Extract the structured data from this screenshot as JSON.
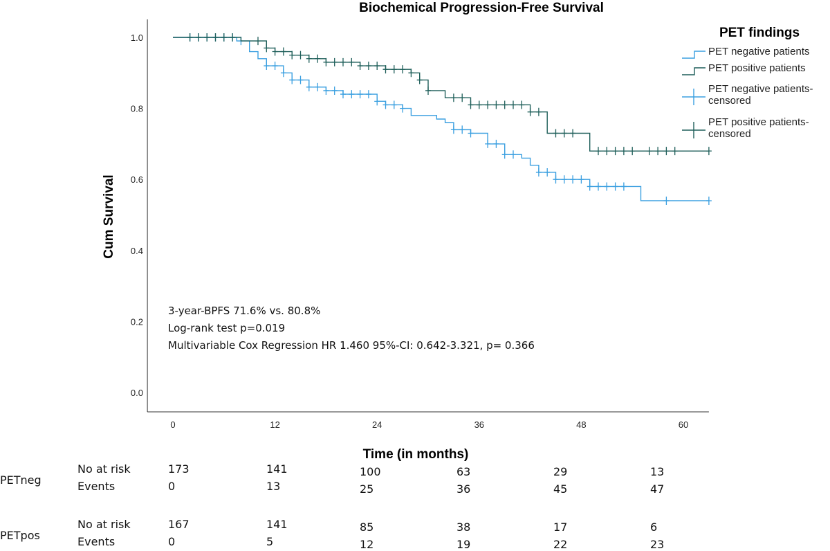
{
  "chart_data": {
    "type": "line",
    "title": "Biochemical Progression-Free Survival",
    "xlabel": "Time (in months)",
    "ylabel": "Cum Survival",
    "xlim": [
      -3,
      63
    ],
    "ylim": [
      0,
      1.0
    ],
    "x_ticks": [
      0,
      12,
      24,
      36,
      48,
      60
    ],
    "y_ticks": [
      0.0,
      0.2,
      0.4,
      0.6,
      0.8,
      1.0
    ],
    "y_tick_labels": [
      "0.0",
      "0.2",
      "0.4",
      "0.6",
      "0.8",
      "1.0"
    ],
    "legend": {
      "title": "PET findings",
      "placement": "top-right",
      "entries": [
        {
          "label": "PET negative patients",
          "kind": "line",
          "series": 0
        },
        {
          "label": "PET positive patients",
          "kind": "line",
          "series": 1
        },
        {
          "label": "PET negative patients-censored",
          "kind": "censor",
          "series": 0
        },
        {
          "label": "PET positive patients-censored",
          "kind": "censor",
          "series": 1
        }
      ]
    },
    "series": [
      {
        "name": "PET negative patients",
        "color": "#3a9fe0",
        "x": [
          0,
          7.5,
          9,
          10,
          11,
          13,
          14,
          16,
          18,
          20,
          24,
          25,
          27,
          28,
          31,
          32,
          33,
          35,
          37,
          39,
          41,
          42,
          43,
          45,
          47,
          49,
          52,
          55,
          63
        ],
        "y": [
          1.0,
          0.99,
          0.96,
          0.94,
          0.92,
          0.9,
          0.88,
          0.86,
          0.85,
          0.84,
          0.82,
          0.81,
          0.8,
          0.78,
          0.77,
          0.76,
          0.74,
          0.73,
          0.7,
          0.67,
          0.66,
          0.64,
          0.62,
          0.6,
          0.6,
          0.58,
          0.58,
          0.54,
          0.54
        ],
        "censored_x": [
          2,
          3,
          4,
          5,
          6,
          7,
          8,
          11,
          12,
          13,
          14,
          15,
          16,
          17,
          18,
          19,
          20,
          21,
          22,
          23,
          24,
          25,
          26,
          27,
          33,
          34,
          35,
          37,
          38,
          39,
          40,
          43,
          44,
          45,
          46,
          47,
          48,
          49,
          50,
          51,
          52,
          53,
          58,
          63
        ]
      },
      {
        "name": "PET positive patients",
        "color": "#1f5f5a",
        "x": [
          0,
          8,
          11,
          12,
          14,
          16,
          18,
          22,
          25,
          28,
          29,
          30,
          32,
          35,
          41,
          42,
          44,
          49,
          50,
          63
        ],
        "y": [
          1.0,
          0.99,
          0.97,
          0.96,
          0.95,
          0.94,
          0.93,
          0.92,
          0.91,
          0.9,
          0.88,
          0.85,
          0.83,
          0.81,
          0.81,
          0.79,
          0.73,
          0.68,
          0.68,
          0.68
        ],
        "censored_x": [
          2,
          3,
          4,
          5,
          6,
          7,
          10,
          11,
          12,
          13,
          14,
          15,
          16,
          17,
          18,
          19,
          20,
          21,
          22,
          23,
          24,
          25,
          26,
          27,
          28,
          29,
          30,
          33,
          34,
          35,
          36,
          37,
          38,
          39,
          40,
          41,
          42,
          43,
          45,
          46,
          47,
          50,
          51,
          52,
          53,
          54,
          56,
          57,
          58,
          59,
          63
        ]
      }
    ]
  },
  "annotations": [
    "3-year-BPFS 71.6% vs. 80.8%",
    "Log-rank test p=0.019",
    "Multivariable Cox Regression HR 1.460 95%-CI: 0.642-3.321, p= 0.366"
  ],
  "risk_table": {
    "groups": [
      {
        "name": "PETneg",
        "rows": [
          {
            "label": "No at risk",
            "values": [
              "173",
              "141",
              "100",
              "63",
              "29",
              "13"
            ]
          },
          {
            "label": "Events",
            "values": [
              "0",
              "13",
              "25",
              "36",
              "45",
              "47"
            ]
          }
        ]
      },
      {
        "name": "PETpos",
        "rows": [
          {
            "label": "No at risk",
            "values": [
              "167",
              "141",
              "85",
              "38",
              "17",
              "6"
            ]
          },
          {
            "label": "Events",
            "values": [
              "0",
              "5",
              "12",
              "19",
              "22",
              "23"
            ]
          }
        ]
      }
    ]
  }
}
